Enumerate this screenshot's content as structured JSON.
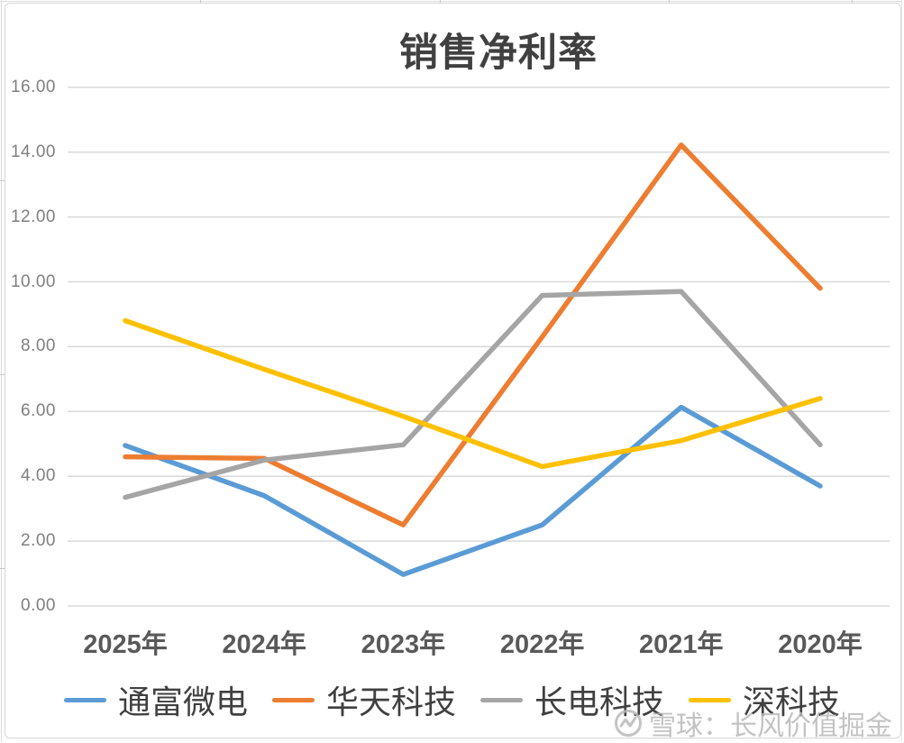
{
  "title": "销售净利率",
  "watermark": {
    "icon": "xueqiu-logo-icon",
    "text": "雪球：长风价值掘金"
  },
  "axes": {
    "y_tick_labels": [
      "0.00",
      "2.00",
      "4.00",
      "6.00",
      "8.00",
      "10.00",
      "12.00",
      "14.00",
      "16.00"
    ],
    "x_tick_labels": [
      "2025年",
      "2024年",
      "2023年",
      "2022年",
      "2021年",
      "2020年"
    ]
  },
  "colors": {
    "gridline": "#d9d9d9",
    "title_text": "#404040",
    "axis_text": "#7f7f7f",
    "xlabel_text": "#595959"
  },
  "chart_data": {
    "type": "line",
    "title": "销售净利率",
    "xlabel": "",
    "ylabel": "",
    "categories": [
      "2025年",
      "2024年",
      "2023年",
      "2022年",
      "2021年",
      "2020年"
    ],
    "series": [
      {
        "name": "通富微电",
        "color": "#5B9BD5",
        "values": [
          4.95,
          3.4,
          0.97,
          2.5,
          6.13,
          3.7
        ]
      },
      {
        "name": "华天科技",
        "color": "#ED7D31",
        "values": [
          4.6,
          4.55,
          2.5,
          8.3,
          14.22,
          9.8
        ]
      },
      {
        "name": "长电科技",
        "color": "#A5A5A5",
        "values": [
          3.35,
          4.5,
          4.97,
          9.58,
          9.7,
          4.97
        ]
      },
      {
        "name": "深科技",
        "color": "#FFC000",
        "values": [
          8.8,
          7.3,
          5.85,
          4.3,
          5.1,
          6.4
        ]
      }
    ],
    "ylim": [
      0,
      16
    ],
    "ytick_step": 2,
    "grid": true,
    "legend_position": "bottom"
  }
}
